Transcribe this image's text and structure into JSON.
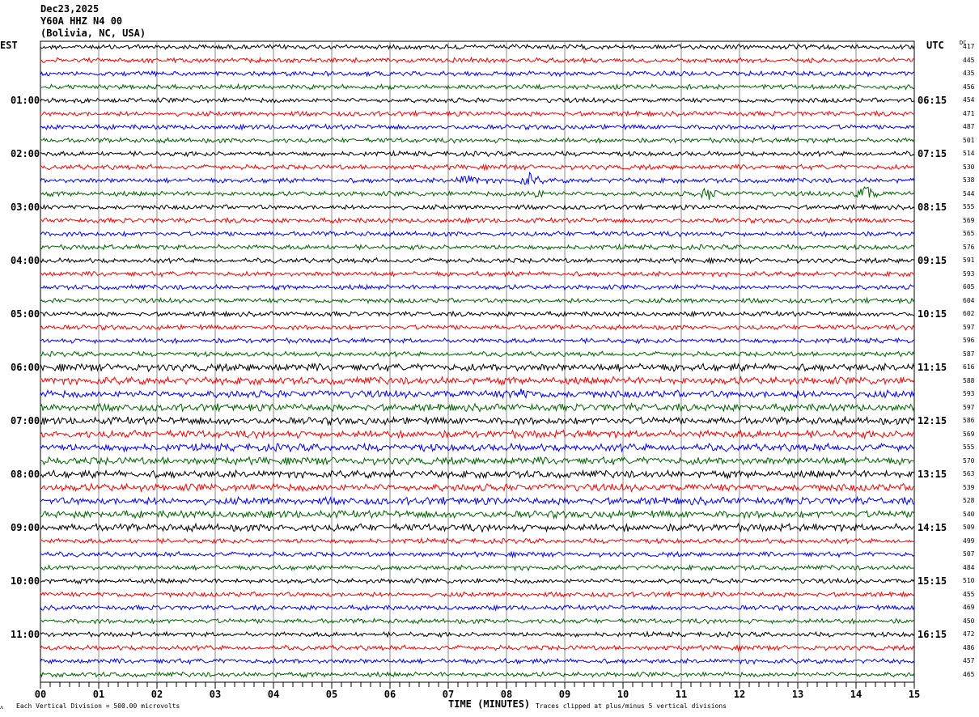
{
  "header": {
    "date": "Dec23,2025",
    "station": "Y60A HHZ N4 00",
    "location": "(Bolivia, NC, USA)"
  },
  "left_tz": "EST",
  "right_tz": "UTC",
  "dc_label": "DC",
  "footer": {
    "scale": "Each Vertical Division =  500.00 microvolts",
    "xlabel": "TIME (MINUTES)",
    "clip_note": "Traces clipped at plus/minus 5 vertical divisions"
  },
  "chart_data": {
    "type": "line",
    "xlabel": "TIME (MINUTES)",
    "xlim": [
      0,
      15
    ],
    "x_ticks": [
      "00",
      "01",
      "02",
      "03",
      "04",
      "05",
      "06",
      "07",
      "08",
      "09",
      "10",
      "11",
      "12",
      "13",
      "14",
      "15"
    ],
    "grid": "vertical lines each minute",
    "trace_colors": [
      "#000000",
      "#ff0000",
      "#0000ff",
      "#006400"
    ],
    "est_hour_labels": [
      "01:00",
      "02:00",
      "03:00",
      "04:00",
      "05:00",
      "06:00",
      "07:00",
      "08:00",
      "09:00",
      "10:00",
      "11:00"
    ],
    "utc_hour_labels": [
      "06:15",
      "07:15",
      "08:15",
      "09:15",
      "10:15",
      "11:15",
      "12:15",
      "13:15",
      "14:15",
      "15:15",
      "16:15"
    ],
    "dc_values": [
      "417",
      "445",
      "435",
      "456",
      "454",
      "471",
      "487",
      "501",
      "514",
      "530",
      "538",
      "544",
      "555",
      "569",
      "565",
      "576",
      "591",
      "593",
      "605",
      "604",
      "602",
      "597",
      "596",
      "587",
      "616",
      "588",
      "593",
      "597",
      "586",
      "569",
      "555",
      "570",
      "563",
      "539",
      "528",
      "540",
      "509",
      "499",
      "507",
      "484",
      "510",
      "455",
      "469",
      "450",
      "472",
      "486",
      "457",
      "465"
    ]
  }
}
